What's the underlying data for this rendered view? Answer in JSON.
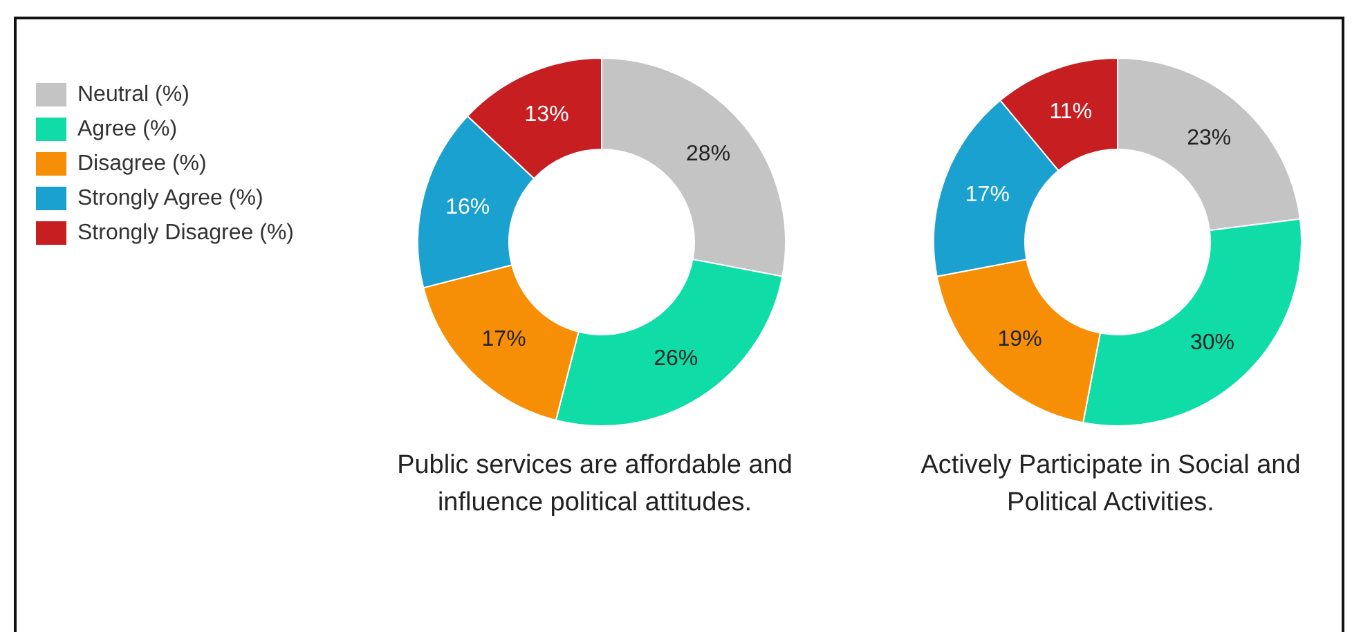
{
  "chart_data": [
    {
      "type": "donut",
      "title": "Public services are affordable and influence political attitudes.",
      "categories": [
        "Neutral (%)",
        "Agree (%)",
        "Disagree (%)",
        "Strongly Agree (%)",
        "Strongly Disagree (%)"
      ],
      "values": [
        28,
        26,
        17,
        16,
        13
      ],
      "value_labels": [
        "28%",
        "26%",
        "17%",
        "16%",
        "13%"
      ],
      "colors": [
        "#c4c4c4",
        "#0fdca7",
        "#f68f06",
        "#1aa1cf",
        "#c71e22"
      ],
      "legend": "top left"
    },
    {
      "type": "donut",
      "title": "Actively Participate in Social and Political Activities.",
      "categories": [
        null,
        null,
        null,
        null,
        null
      ],
      "values": [
        23,
        30,
        19,
        17,
        11
      ],
      "value_labels": [
        "23%",
        "30%",
        "19%",
        "17%",
        "11%"
      ],
      "colors": [
        "#c4c4c4",
        "#0fdca7",
        "#f68f06",
        "#1aa1cf",
        "#c71e22"
      ]
    }
  ]
}
